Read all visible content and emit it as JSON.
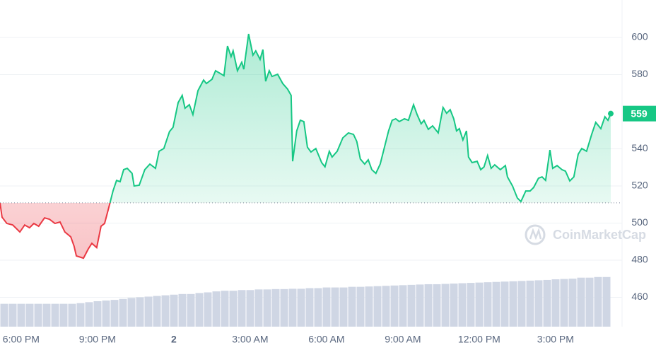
{
  "chart_data": {
    "type": "line",
    "watermark": "CoinMarketCap",
    "x": [
      17.17,
      17.25,
      17.44,
      17.67,
      17.95,
      18.14,
      18.33,
      18.5,
      18.69,
      18.92,
      19.11,
      19.33,
      19.53,
      19.72,
      19.95,
      20.08,
      20.17,
      20.45,
      20.64,
      20.78,
      20.97,
      21.14,
      21.28,
      21.47,
      21.61,
      21.75,
      21.89,
      22.03,
      22.17,
      22.36,
      22.44,
      22.64,
      22.86,
      23.06,
      23.28,
      23.42,
      23.61,
      23.83,
      23.97,
      24.17,
      24.33,
      24.44,
      24.61,
      24.75,
      24.95,
      25.17,
      25.28,
      25.5,
      25.64,
      25.83,
      25.97,
      26.11,
      26.25,
      26.33,
      26.5,
      26.67,
      26.75,
      26.94,
      27.11,
      27.22,
      27.39,
      27.5,
      27.61,
      27.75,
      27.86,
      28.08,
      28.28,
      28.47,
      28.61,
      28.67,
      28.83,
      28.97,
      29.11,
      29.25,
      29.39,
      29.58,
      29.81,
      29.94,
      30.11,
      30.22,
      30.42,
      30.64,
      30.86,
      31.06,
      31.19,
      31.33,
      31.5,
      31.64,
      31.78,
      31.94,
      32.11,
      32.25,
      32.44,
      32.58,
      32.72,
      32.86,
      33.06,
      33.22,
      33.42,
      33.56,
      33.72,
      33.83,
      34.0,
      34.17,
      34.39,
      34.58,
      34.72,
      34.86,
      35.0,
      35.11,
      35.22,
      35.36,
      35.5,
      35.58,
      35.72,
      35.92,
      36.06,
      36.19,
      36.33,
      36.47,
      36.61,
      36.83,
      37.03,
      37.11,
      37.31,
      37.5,
      37.64,
      37.83,
      38.0,
      38.14,
      38.33,
      38.47,
      38.61,
      38.78,
      38.89,
      39.06,
      39.25,
      39.39,
      39.56,
      39.72,
      39.89,
      40.03,
      40.22,
      40.42,
      40.58,
      40.78,
      40.94,
      41.06,
      41.17
    ],
    "series": [
      {
        "values": [
          510.9,
          503.2,
          499.8,
          499.0,
          495.2,
          499.0,
          497.5,
          499.8,
          498.3,
          502.8,
          502.1,
          499.8,
          500.6,
          495.2,
          492.6,
          487.6,
          482.3,
          481.1,
          486.1,
          489.1,
          486.8,
          498.3,
          499.8,
          509.7,
          517.3,
          523.0,
          522.3,
          528.8,
          529.5,
          526.8,
          520.0,
          520.4,
          528.8,
          531.8,
          529.5,
          538.7,
          540.2,
          549.3,
          551.6,
          564.9,
          568.8,
          561.9,
          563.8,
          558.5,
          571.4,
          577.1,
          575.2,
          577.5,
          582.1,
          580.6,
          579.4,
          595.4,
          589.7,
          592.8,
          582.1,
          586.7,
          582.9,
          601.9,
          590.5,
          592.8,
          588.2,
          593.5,
          576.4,
          582.1,
          579.0,
          580.2,
          575.2,
          572.2,
          568.8,
          533.3,
          549.7,
          555.4,
          554.7,
          540.9,
          538.3,
          540.2,
          532.6,
          530.3,
          538.7,
          535.6,
          538.7,
          545.9,
          548.6,
          547.8,
          544.0,
          534.5,
          531.8,
          534.1,
          528.8,
          526.8,
          531.8,
          539.4,
          549.7,
          555.4,
          556.2,
          554.7,
          556.2,
          555.4,
          563.8,
          558.5,
          553.5,
          555.4,
          550.5,
          552.4,
          548.6,
          562.3,
          559.2,
          561.1,
          556.2,
          549.7,
          550.9,
          544.8,
          549.7,
          535.6,
          532.6,
          533.3,
          528.8,
          530.3,
          536.4,
          529.5,
          531.4,
          528.8,
          531.0,
          524.9,
          520.0,
          513.5,
          511.6,
          517.3,
          517.3,
          519.2,
          524.2,
          524.9,
          523.0,
          539.4,
          529.5,
          531.0,
          528.8,
          528.0,
          522.7,
          524.9,
          537.1,
          540.2,
          538.7,
          547.8,
          554.3,
          550.9,
          557.3,
          555.4,
          559
        ],
        "up_color": "#16c784",
        "down_color": "#ea3943"
      }
    ],
    "baseline": 510.9,
    "volume": {
      "color": "#cfd6e4",
      "axis": "y2",
      "values": [
        7,
        7,
        7,
        7,
        7,
        7,
        7,
        7,
        7,
        7.2,
        7.5,
        7.8,
        8,
        8.2,
        8.5,
        8.8,
        9,
        9.2,
        9.4,
        9.6,
        9.8,
        10,
        10,
        10.3,
        10.5,
        10.8,
        11,
        11,
        11.2,
        11.2,
        11.4,
        11.4,
        11.5,
        11.5,
        11.6,
        11.6,
        11.8,
        11.8,
        12,
        12,
        12,
        12.2,
        12.2,
        12.3,
        12.4,
        12.5,
        12.6,
        12.7,
        12.8,
        12.9,
        13,
        13,
        13.1,
        13.2,
        13.3,
        13.4,
        13.5,
        13.6,
        13.7,
        13.8,
        13.9,
        14,
        14.1,
        14.2,
        14.3,
        14.5,
        14.6,
        14.7,
        15,
        15,
        15.2,
        15.2
      ]
    },
    "xlim": [
      17.17,
      41.17
    ],
    "xticks": [
      {
        "value": 18,
        "label": "6:00 PM"
      },
      {
        "value": 21,
        "label": "9:00 PM"
      },
      {
        "value": 24,
        "label": "2"
      },
      {
        "value": 27,
        "label": "3:00 AM"
      },
      {
        "value": 30,
        "label": "6:00 AM"
      },
      {
        "value": 33,
        "label": "9:00 AM"
      },
      {
        "value": 36,
        "label": "12:00 PM"
      },
      {
        "value": 39,
        "label": "3:00 PM"
      }
    ],
    "ylim": [
      444.2,
      620.2
    ],
    "yticks": [
      460,
      480,
      500,
      520,
      540,
      580,
      600
    ],
    "y2lim": [
      0,
      100
    ],
    "grid": true
  }
}
